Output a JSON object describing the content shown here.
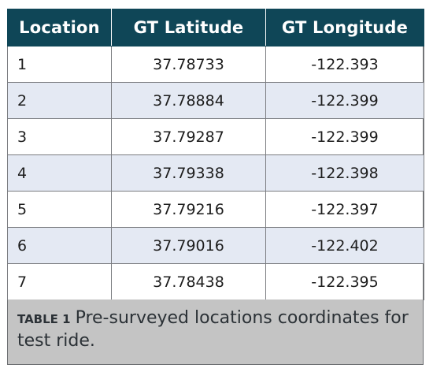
{
  "table": {
    "headers": [
      "Location",
      "GT Latitude",
      "GT Longitude"
    ],
    "rows": [
      [
        "1",
        "37.78733",
        "-122.393"
      ],
      [
        "2",
        "37.78884",
        "-122.399"
      ],
      [
        "3",
        "37.79287",
        "-122.399"
      ],
      [
        "4",
        "37.79338",
        "-122.398"
      ],
      [
        "5",
        "37.79216",
        "-122.397"
      ],
      [
        "6",
        "37.79016",
        "-122.402"
      ],
      [
        "7",
        "37.78438",
        "-122.395"
      ]
    ]
  },
  "caption": {
    "label": "TABLE 1",
    "text": "Pre-surveyed locations coordinates for test ride."
  },
  "colors": {
    "header_bg": "#0f4657",
    "alt_row_bg": "#e4e9f3",
    "caption_bg": "#c4c4c4"
  }
}
